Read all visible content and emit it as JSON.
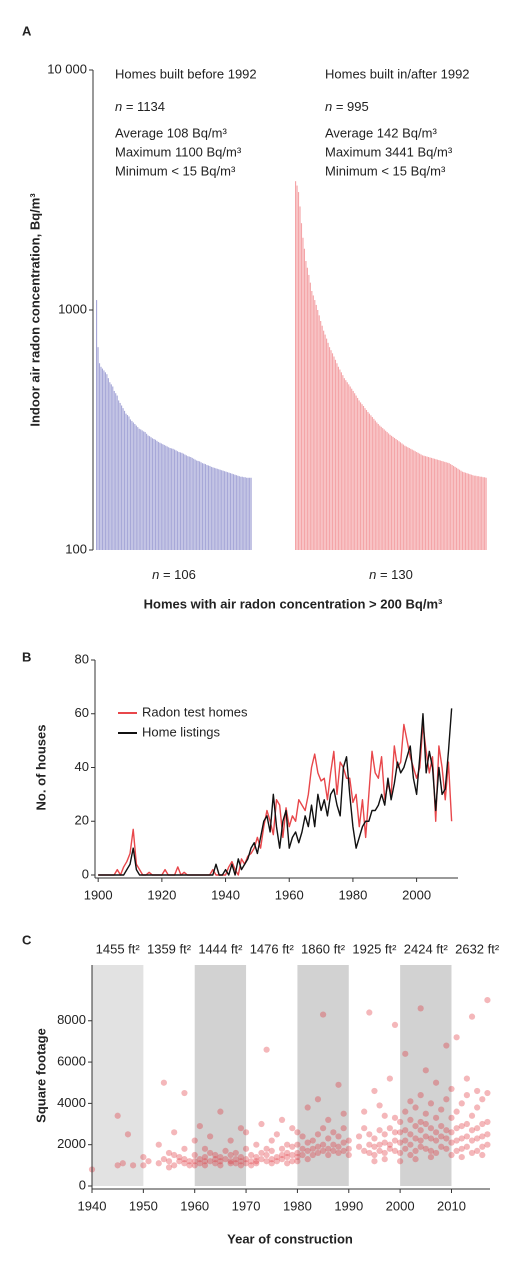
{
  "chart_data": [
    {
      "type": "bar",
      "panel": "A",
      "log_y": true,
      "ylabel": "Indoor air radon concentration, Bq/m³",
      "xlabel": "Homes with air radon concentration > 200 Bq/m³",
      "ylim": [
        100,
        10000
      ],
      "yticks": [
        100,
        1000,
        {
          "value": 10000,
          "label": "10 000"
        }
      ],
      "series": [
        {
          "name": "Homes built before 1992",
          "color": "#a7a8d8",
          "stats": [
            "n = 1134",
            "Average 108 Bq/m³",
            "Maximum 1100 Bq/m³",
            "Minimum < 15 Bq/m³"
          ],
          "subset_label": "n = 106",
          "values": [
            1100,
            700,
            600,
            580,
            570,
            560,
            550,
            540,
            520,
            500,
            490,
            480,
            460,
            450,
            440,
            420,
            410,
            400,
            390,
            380,
            370,
            365,
            360,
            350,
            345,
            340,
            335,
            330,
            325,
            320,
            318,
            315,
            312,
            310,
            305,
            300,
            298,
            295,
            292,
            290,
            288,
            285,
            282,
            280,
            278,
            276,
            274,
            272,
            270,
            268,
            266,
            265,
            264,
            262,
            260,
            258,
            256,
            255,
            254,
            252,
            250,
            248,
            246,
            245,
            244,
            242,
            240,
            238,
            236,
            235,
            234,
            232,
            230,
            229,
            228,
            226,
            225,
            224,
            222,
            221,
            220,
            219,
            218,
            217,
            216,
            215,
            214,
            213,
            212,
            211,
            210,
            209,
            208,
            207,
            206,
            205,
            204,
            203,
            202,
            202,
            201,
            201,
            200,
            200,
            200,
            200
          ]
        },
        {
          "name": "Homes built in/after 1992",
          "color": "#f4a5a8",
          "stats": [
            "n = 995",
            "Average 142 Bq/m³",
            "Maximum 3441 Bq/m³",
            "Minimum < 15 Bq/m³"
          ],
          "subset_label": "n = 130",
          "values": [
            3441,
            3300,
            3100,
            2700,
            2300,
            2000,
            1800,
            1600,
            1500,
            1400,
            1300,
            1200,
            1150,
            1100,
            1050,
            1000,
            950,
            900,
            860,
            820,
            790,
            760,
            730,
            700,
            680,
            660,
            640,
            620,
            600,
            580,
            565,
            550,
            535,
            520,
            510,
            500,
            490,
            480,
            470,
            460,
            450,
            440,
            430,
            420,
            412,
            405,
            398,
            390,
            383,
            376,
            370,
            364,
            358,
            352,
            346,
            340,
            335,
            330,
            326,
            322,
            318,
            314,
            310,
            306,
            302,
            299,
            296,
            293,
            290,
            287,
            284,
            281,
            278,
            275,
            272,
            270,
            268,
            266,
            264,
            262,
            260,
            258,
            256,
            254,
            252,
            250,
            248,
            247,
            246,
            245,
            244,
            243,
            242,
            241,
            240,
            239,
            238,
            237,
            236,
            235,
            234,
            233,
            232,
            231,
            230,
            228,
            226,
            224,
            222,
            220,
            218,
            216,
            214,
            212,
            211,
            210,
            209,
            208,
            207,
            206,
            205,
            204,
            204,
            203,
            203,
            202,
            202,
            201,
            201,
            200
          ]
        }
      ]
    },
    {
      "type": "line",
      "panel": "B",
      "ylabel": "No. of houses",
      "legend": "upper left",
      "xlim": [
        1899,
        2013
      ],
      "xticks": [
        1900,
        1920,
        1940,
        1960,
        1980,
        2000
      ],
      "ylim": [
        0,
        80
      ],
      "yticks": [
        0,
        20,
        40,
        60,
        80
      ],
      "x": [
        1900,
        1901,
        1902,
        1903,
        1904,
        1905,
        1906,
        1907,
        1908,
        1909,
        1910,
        1911,
        1912,
        1913,
        1914,
        1915,
        1916,
        1917,
        1918,
        1919,
        1920,
        1921,
        1922,
        1923,
        1924,
        1925,
        1926,
        1927,
        1928,
        1929,
        1930,
        1931,
        1932,
        1933,
        1934,
        1935,
        1936,
        1937,
        1938,
        1939,
        1940,
        1941,
        1942,
        1943,
        1944,
        1945,
        1946,
        1947,
        1948,
        1949,
        1950,
        1951,
        1952,
        1953,
        1954,
        1955,
        1956,
        1957,
        1958,
        1959,
        1960,
        1961,
        1962,
        1963,
        1964,
        1965,
        1966,
        1967,
        1968,
        1969,
        1970,
        1971,
        1972,
        1973,
        1974,
        1975,
        1976,
        1977,
        1978,
        1979,
        1980,
        1981,
        1982,
        1983,
        1984,
        1985,
        1986,
        1987,
        1988,
        1989,
        1990,
        1991,
        1992,
        1993,
        1994,
        1995,
        1996,
        1997,
        1998,
        1999,
        2000,
        2001,
        2002,
        2003,
        2004,
        2005,
        2006,
        2007,
        2008,
        2009,
        2010,
        2011
      ],
      "series": [
        {
          "name": "Radon test homes",
          "color": "#e8474b",
          "values": [
            0,
            0,
            0,
            0,
            0,
            0,
            2,
            0,
            3,
            5,
            8,
            17,
            4,
            2,
            0,
            0,
            1,
            0,
            0,
            0,
            0,
            2,
            0,
            0,
            0,
            3,
            0,
            1,
            0,
            0,
            0,
            0,
            0,
            0,
            0,
            0,
            2,
            0,
            0,
            0,
            0,
            3,
            5,
            2,
            0,
            6,
            4,
            7,
            8,
            10,
            14,
            10,
            18,
            24,
            20,
            15,
            28,
            26,
            14,
            25,
            18,
            22,
            20,
            28,
            26,
            24,
            30,
            40,
            45,
            38,
            35,
            36,
            28,
            38,
            46,
            30,
            42,
            40,
            36,
            36,
            27,
            30,
            18,
            28,
            14,
            30,
            46,
            38,
            36,
            44,
            28,
            34,
            30,
            48,
            40,
            42,
            56,
            50,
            44,
            40,
            36,
            40,
            56,
            46,
            38,
            44,
            20,
            48,
            40,
            28,
            42,
            20
          ]
        },
        {
          "name": "Home listings",
          "color": "#111111",
          "values": [
            0,
            0,
            0,
            0,
            0,
            0,
            0,
            0,
            0,
            2,
            4,
            10,
            2,
            0,
            0,
            0,
            0,
            0,
            0,
            0,
            0,
            0,
            0,
            0,
            0,
            0,
            0,
            0,
            0,
            0,
            0,
            0,
            0,
            0,
            0,
            0,
            0,
            4,
            0,
            0,
            2,
            0,
            4,
            0,
            6,
            2,
            4,
            6,
            10,
            12,
            8,
            14,
            20,
            22,
            16,
            30,
            18,
            10,
            20,
            24,
            10,
            14,
            16,
            12,
            16,
            22,
            18,
            26,
            18,
            30,
            24,
            28,
            22,
            30,
            32,
            26,
            22,
            40,
            44,
            30,
            18,
            10,
            14,
            18,
            20,
            20,
            24,
            24,
            26,
            30,
            26,
            36,
            28,
            34,
            42,
            38,
            40,
            44,
            48,
            36,
            30,
            44,
            60,
            38,
            46,
            40,
            24,
            40,
            30,
            32,
            46,
            62
          ]
        }
      ]
    },
    {
      "type": "scatter",
      "panel": "C",
      "ylabel": "Square footage",
      "xlabel": "Year of construction",
      "color": "#e0303a",
      "alpha": 0.35,
      "xlim": [
        1940,
        2017.5
      ],
      "xticks": [
        1940,
        1950,
        1960,
        1970,
        1980,
        1990,
        2000,
        2010
      ],
      "ylim": [
        0,
        10700
      ],
      "yticks": [
        0,
        2000,
        4000,
        6000,
        8000
      ],
      "decades": [
        {
          "decade": 1940,
          "label": "1455 ft²",
          "shade": "#e2e2e2"
        },
        {
          "decade": 1950,
          "label": "1359 ft²"
        },
        {
          "decade": 1960,
          "label": "1444 ft²",
          "shade": "#d2d2d2"
        },
        {
          "decade": 1970,
          "label": "1476 ft²"
        },
        {
          "decade": 1980,
          "label": "1860 ft²",
          "shade": "#d2d2d2"
        },
        {
          "decade": 1990,
          "label": "1925 ft²"
        },
        {
          "decade": 2000,
          "label": "2424 ft²",
          "shade": "#d2d2d2"
        },
        {
          "decade": 2010,
          "label": "2632 ft²"
        }
      ],
      "x": [
        1940,
        1945,
        1945,
        1946,
        1947,
        1948,
        1950,
        1950,
        1951,
        1953,
        1953,
        1954,
        1954,
        1955,
        1955,
        1955,
        1956,
        1956,
        1956,
        1957,
        1957,
        1958,
        1958,
        1958,
        1958,
        1959,
        1959,
        1960,
        1960,
        1960,
        1960,
        1961,
        1961,
        1961,
        1962,
        1962,
        1962,
        1962,
        1963,
        1963,
        1963,
        1964,
        1964,
        1964,
        1965,
        1965,
        1965,
        1965,
        1966,
        1966,
        1967,
        1967,
        1967,
        1967,
        1968,
        1968,
        1968,
        1969,
        1969,
        1969,
        1969,
        1970,
        1970,
        1970,
        1970,
        1971,
        1971,
        1971,
        1972,
        1972,
        1972,
        1972,
        1973,
        1973,
        1973,
        1974,
        1974,
        1974,
        1974,
        1975,
        1975,
        1975,
        1975,
        1976,
        1976,
        1976,
        1977,
        1977,
        1977,
        1977,
        1978,
        1978,
        1978,
        1978,
        1979,
        1979,
        1979,
        1979,
        1980,
        1980,
        1980,
        1980,
        1980,
        1981,
        1981,
        1981,
        1982,
        1982,
        1982,
        1982,
        1983,
        1983,
        1983,
        1984,
        1984,
        1984,
        1984,
        1985,
        1985,
        1985,
        1985,
        1986,
        1986,
        1986,
        1986,
        1987,
        1987,
        1987,
        1988,
        1988,
        1988,
        1988,
        1989,
        1989,
        1989,
        1989,
        1990,
        1990,
        1990,
        1992,
        1992,
        1993,
        1993,
        1993,
        1994,
        1994,
        1994,
        1994,
        1995,
        1995,
        1995,
        1995,
        1995,
        1996,
        1996,
        1996,
        1996,
        1997,
        1997,
        1997,
        1997,
        1997,
        1998,
        1998,
        1998,
        1998,
        1999,
        1999,
        1999,
        1999,
        1999,
        2000,
        2000,
        2000,
        2000,
        2000,
        2001,
        2001,
        2001,
        2001,
        2001,
        2002,
        2002,
        2002,
        2002,
        2002,
        2003,
        2003,
        2003,
        2003,
        2003,
        2004,
        2004,
        2004,
        2004,
        2004,
        2004,
        2005,
        2005,
        2005,
        2005,
        2005,
        2006,
        2006,
        2006,
        2006,
        2006,
        2007,
        2007,
        2007,
        2007,
        2007,
        2008,
        2008,
        2008,
        2008,
        2009,
        2009,
        2009,
        2009,
        2009,
        2010,
        2010,
        2010,
        2010,
        2010,
        2011,
        2011,
        2011,
        2011,
        2011,
        2012,
        2012,
        2012,
        2012,
        2012,
        2013,
        2013,
        2013,
        2013,
        2013,
        2014,
        2014,
        2014,
        2014,
        2014,
        2015,
        2015,
        2015,
        2015,
        2015,
        2016,
        2016,
        2016,
        2016,
        2016,
        2017,
        2017,
        2017,
        2017,
        2017
      ],
      "values": [
        800,
        1000,
        3400,
        1100,
        2500,
        1000,
        1000,
        1400,
        1200,
        1100,
        2000,
        5000,
        1300,
        1200,
        900,
        1600,
        1000,
        1500,
        2600,
        1200,
        1400,
        1300,
        1100,
        1800,
        4500,
        1200,
        1000,
        1200,
        1500,
        2200,
        1000,
        1100,
        1300,
        2900,
        1200,
        1400,
        1000,
        1800,
        1200,
        1600,
        2400,
        1300,
        1100,
        1500,
        1200,
        1400,
        3600,
        1000,
        1300,
        1700,
        1200,
        1100,
        2200,
        1500,
        1100,
        1300,
        1600,
        1200,
        1400,
        2800,
        1000,
        1100,
        1300,
        1800,
        2600,
        1200,
        1500,
        1000,
        1200,
        1400,
        2000,
        1100,
        1300,
        1600,
        3000,
        1200,
        1500,
        1800,
        6600,
        1300,
        1700,
        2200,
        1100,
        1400,
        1200,
        2500,
        1500,
        1800,
        1300,
        3200,
        1400,
        2000,
        1600,
        1100,
        1500,
        1900,
        2800,
        1200,
        1600,
        2000,
        1400,
        2600,
        1200,
        1800,
        1500,
        2400,
        1700,
        2100,
        1300,
        3800,
        1800,
        2200,
        1500,
        1900,
        2500,
        1600,
        4200,
        2000,
        8300,
        1700,
        2800,
        1800,
        2300,
        1500,
        3200,
        2000,
        2600,
        1700,
        1900,
        2400,
        1600,
        4900,
        2100,
        2800,
        1700,
        3500,
        1800,
        2200,
        1500,
        1900,
        2400,
        1700,
        2800,
        3600,
        2000,
        1600,
        2500,
        8400,
        1900,
        2300,
        1500,
        4600,
        1200,
        2000,
        2700,
        1700,
        3900,
        2100,
        2500,
        1600,
        3400,
        1300,
        2000,
        2800,
        1800,
        5200,
        2200,
        2600,
        1700,
        3300,
        7800,
        2100,
        2600,
        1600,
        3100,
        1200,
        2200,
        2700,
        1800,
        3600,
        6400,
        2000,
        2500,
        1500,
        4100,
        3200,
        2300,
        2900,
        1700,
        3800,
        1300,
        2200,
        2700,
        1900,
        4400,
        3100,
        8600,
        2400,
        3000,
        1800,
        3500,
        5600,
        2300,
        2800,
        1700,
        4000,
        1400,
        2200,
        2600,
        1600,
        3300,
        5000,
        2400,
        2900,
        1900,
        3700,
        2300,
        2700,
        1800,
        4200,
        6800,
        2100,
        2600,
        1500,
        3300,
        4700,
        2200,
        2800,
        1700,
        3600,
        7200,
        2300,
        2900,
        1800,
        4000,
        1400,
        2400,
        3000,
        1900,
        4400,
        5200,
        2200,
        2700,
        1600,
        3400,
        8200,
        2300,
        2800,
        1700,
        3800,
        4600,
        2400,
        3000,
        1900,
        4200,
        1500,
        2500,
        3100,
        2000,
        4500,
        9000
      ]
    }
  ]
}
